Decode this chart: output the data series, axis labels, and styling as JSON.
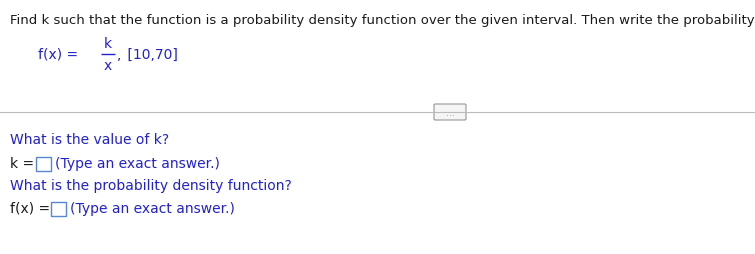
{
  "title": "Find k such that the function is a probability density function over the given interval. Then write the probability density function.",
  "title_color": "#000000",
  "title_fontsize": 9.5,
  "fx_prefix": "f(x) = ",
  "fraction_num": "k",
  "fraction_den": "x",
  "interval": " [10,70]",
  "separator_dots": "...",
  "q1": "What is the value of k?",
  "q2": "What is the probability density function?",
  "ans1_hint": "(Type an exact answer.)",
  "ans2_hint": "(Type an exact answer.)",
  "bg_color": "#ffffff",
  "black_color": "#1a1a1a",
  "blue_color": "#2222CC",
  "box_border_color": "#5588CC",
  "sep_color": "#BBBBBB",
  "dots_color": "#888888",
  "dots_bg": "#f5f5f5"
}
